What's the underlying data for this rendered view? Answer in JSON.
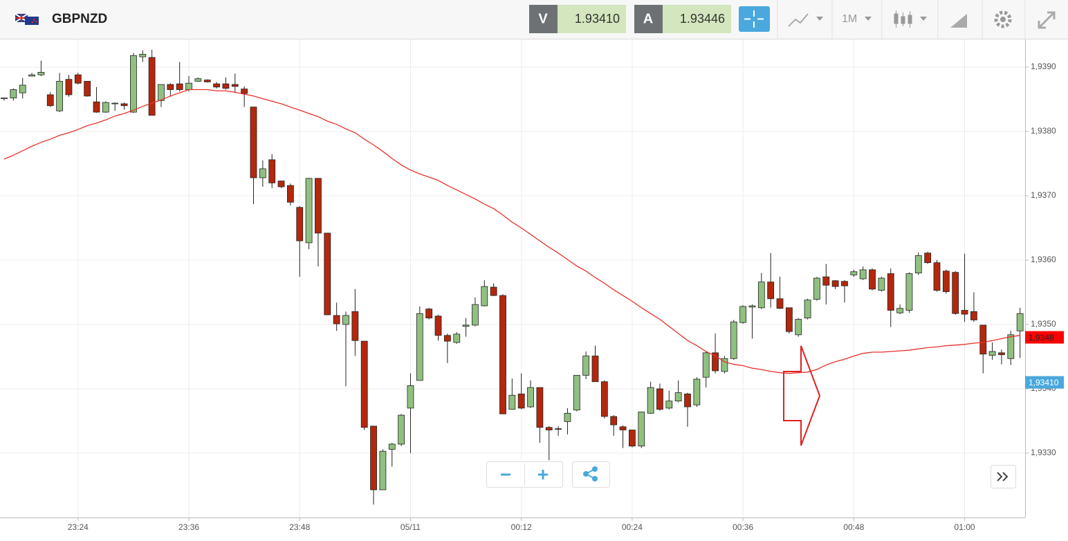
{
  "header": {
    "symbol": "GBPNZD",
    "sell_label": "V",
    "sell_price": "1.93410",
    "buy_label": "A",
    "buy_price": "1.93446",
    "timeframe": "1M"
  },
  "chart_data": {
    "type": "candlestick",
    "categories": [
      null,
      null,
      null,
      null,
      null,
      null,
      null,
      null,
      "23:24",
      null,
      null,
      null,
      null,
      null,
      null,
      null,
      null,
      null,
      null,
      null,
      "23:36",
      null,
      null,
      null,
      null,
      null,
      null,
      null,
      null,
      null,
      null,
      null,
      "23:48",
      null,
      null,
      null,
      null,
      null,
      null,
      null,
      null,
      null,
      null,
      null,
      "05/11",
      null,
      null,
      null,
      null,
      null,
      null,
      null,
      null,
      null,
      null,
      null,
      "00:12",
      null,
      null,
      null,
      null,
      null,
      null,
      null,
      null,
      null,
      null,
      null,
      "00:24",
      null,
      null,
      null,
      null,
      null,
      null,
      null,
      null,
      null,
      null,
      null,
      "00:36",
      null,
      null,
      null,
      null,
      null,
      null,
      null,
      null,
      null,
      null,
      null,
      "00:48",
      null,
      null,
      null,
      null,
      null,
      null,
      null,
      null,
      null,
      null,
      null,
      "01:00",
      null,
      null,
      null,
      null,
      null,
      null
    ],
    "open": [
      1.93851,
      1.93852,
      1.9386,
      1.93886,
      1.93888,
      1.93857,
      1.93832,
      1.93881,
      1.93888,
      1.93878,
      1.93846,
      1.9383,
      1.93843,
      1.93843,
      1.9383,
      1.93916,
      1.93915,
      1.93848,
      1.93873,
      1.93874,
      1.93865,
      1.93878,
      1.9388,
      1.93874,
      1.93874,
      1.93873,
      1.93866,
      1.93838,
      1.93728,
      1.93756,
      1.93723,
      1.93716,
      1.93682,
      1.93627,
      1.93727,
      1.93642,
      1.93514,
      1.935,
      1.9352,
      1.93474,
      1.93342,
      1.93243,
      1.93306,
      1.93314,
      1.9337,
      1.93413,
      1.93524,
      1.93513,
      1.93483,
      1.93472,
      1.93497,
      1.93499,
      1.93529,
      1.93558,
      1.93545,
      1.93368,
      1.93392,
      1.93372,
      1.93402,
      1.9334,
      1.93338,
      1.93349,
      1.93367,
      1.93421,
      1.93451,
      1.93411,
      1.93357,
      1.93341,
      1.93336,
      1.93311,
      1.93362,
      1.934,
      1.9337,
      1.93381,
      1.93392,
      1.93375,
      1.93418,
      1.93456,
      1.93427,
      1.93447,
      1.93503,
      1.93527,
      1.93526,
      1.93566,
      1.9354,
      1.93526,
      1.93484,
      1.9351,
      1.93539,
      1.93574,
      1.93568,
      1.93567,
      1.93577,
      1.93571,
      1.93585,
      1.93553,
      1.93579,
      1.93518,
      1.93522,
      1.9358,
      1.93611,
      1.93596,
      1.93583,
      1.93581,
      1.93522,
      1.9352,
      1.93499,
      1.93452,
      1.93456,
      1.93447,
      1.9349
    ],
    "high": [
      1.93852,
      1.93867,
      1.93883,
      1.93891,
      1.9391,
      1.93861,
      1.93891,
      1.93888,
      1.93891,
      1.93878,
      1.93869,
      1.93847,
      1.93845,
      1.93845,
      1.93922,
      1.93926,
      1.93927,
      1.93873,
      1.93875,
      1.93908,
      1.93886,
      1.93884,
      1.93881,
      1.93877,
      1.93884,
      1.9389,
      1.9387,
      1.93838,
      1.93755,
      1.93765,
      1.93723,
      1.93719,
      1.93684,
      1.93728,
      1.93728,
      1.93642,
      1.93534,
      1.9352,
      1.93555,
      1.93474,
      1.93342,
      1.93306,
      1.93316,
      1.93361,
      1.93424,
      1.93528,
      1.93526,
      1.93515,
      1.93486,
      1.93488,
      1.9351,
      1.93542,
      1.93569,
      1.93564,
      1.93547,
      1.93416,
      1.93424,
      1.93413,
      1.93402,
      1.93342,
      1.93342,
      1.9337,
      1.93421,
      1.93458,
      1.93467,
      1.93413,
      1.93359,
      1.93343,
      1.93336,
      1.93364,
      1.93411,
      1.93408,
      1.93397,
      1.93413,
      1.93394,
      1.93418,
      1.93458,
      1.93486,
      1.93451,
      1.93507,
      1.9353,
      1.93531,
      1.9358,
      1.93611,
      1.93574,
      1.93526,
      1.9351,
      1.9354,
      1.93574,
      1.93594,
      1.93569,
      1.93569,
      1.93585,
      1.9359,
      1.93587,
      1.93574,
      1.93587,
      1.93531,
      1.93581,
      1.93612,
      1.93613,
      1.936,
      1.93585,
      1.93583,
      1.9361,
      1.9355,
      1.93499,
      1.93472,
      1.93461,
      1.9349,
      1.93526
    ],
    "low": [
      1.93848,
      1.93848,
      1.93851,
      1.93886,
      1.93886,
      1.93838,
      1.9383,
      1.93854,
      1.93873,
      1.93854,
      1.93829,
      1.93829,
      1.93832,
      1.93834,
      1.93829,
      1.93908,
      1.93825,
      1.93838,
      1.93854,
      1.93862,
      1.93862,
      1.93877,
      1.93876,
      1.93867,
      1.93865,
      1.9386,
      1.93838,
      1.93687,
      1.93714,
      1.93712,
      1.93712,
      1.93685,
      1.93574,
      1.93617,
      1.9359,
      1.93515,
      1.9349,
      1.93404,
      1.93451,
      1.93336,
      1.9322,
      1.93243,
      1.93279,
      1.93311,
      1.933,
      1.93413,
      1.93508,
      1.93475,
      1.9344,
      1.9347,
      1.93481,
      1.93497,
      1.93528,
      1.93544,
      1.93361,
      1.93368,
      1.93368,
      1.9337,
      1.93316,
      1.93289,
      1.93327,
      1.93329,
      1.93365,
      1.93415,
      1.93411,
      1.93354,
      1.93327,
      1.93308,
      1.93309,
      1.93308,
      1.93361,
      1.93366,
      1.93368,
      1.93379,
      1.93341,
      1.93372,
      1.93402,
      1.93424,
      1.93424,
      1.93445,
      1.93501,
      1.93478,
      1.93524,
      1.93526,
      1.93524,
      1.93486,
      1.93481,
      1.93508,
      1.93537,
      1.93531,
      1.93555,
      1.93534,
      1.93574,
      1.93569,
      1.93553,
      1.93551,
      1.93496,
      1.93516,
      1.93518,
      1.93577,
      1.93594,
      1.93551,
      1.93548,
      1.93515,
      1.93504,
      1.93504,
      1.93424,
      1.93445,
      1.93438,
      1.93437,
      1.93448
    ],
    "close": [
      1.93852,
      1.93865,
      1.93872,
      1.93888,
      1.93892,
      1.9384,
      1.93878,
      1.93857,
      1.93875,
      1.93855,
      1.9383,
      1.93845,
      1.93844,
      1.9384,
      1.93918,
      1.9392,
      1.93825,
      1.93873,
      1.93865,
      1.93865,
      1.93875,
      1.93882,
      1.93877,
      1.93869,
      1.93867,
      1.9387,
      1.93859,
      1.93728,
      1.93742,
      1.9372,
      1.93714,
      1.9369,
      1.9363,
      1.93727,
      1.93642,
      1.93515,
      1.93501,
      1.93514,
      1.93475,
      1.9334,
      1.93243,
      1.93303,
      1.93314,
      1.93359,
      1.93405,
      1.93517,
      1.9351,
      1.93483,
      1.93474,
      1.93485,
      1.93499,
      1.93531,
      1.93559,
      1.93545,
      1.93361,
      1.9339,
      1.9337,
      1.93402,
      1.9334,
      1.93336,
      1.93337,
      1.93362,
      1.93421,
      1.93451,
      1.93411,
      1.93357,
      1.93344,
      1.93336,
      1.93311,
      1.93364,
      1.93402,
      1.93368,
      1.93381,
      1.93394,
      1.93372,
      1.93415,
      1.93456,
      1.93428,
      1.93447,
      1.93504,
      1.93528,
      1.93529,
      1.93566,
      1.9354,
      1.93525,
      1.93489,
      1.93508,
      1.93538,
      1.93572,
      1.93561,
      1.93559,
      1.9356,
      1.93582,
      1.93585,
      1.93555,
      1.93572,
      1.93522,
      1.93525,
      1.93579,
      1.93607,
      1.93596,
      1.93553,
      1.93551,
      1.93517,
      1.93516,
      1.93507,
      1.93454,
      1.93458,
      1.93453,
      1.93484,
      1.93517
    ],
    "up_color": "#90c07f",
    "down_color": "#b3280d",
    "moving_average": {
      "color": "#e8302a",
      "values": [
        1.93757,
        1.93763,
        1.9377,
        1.93777,
        1.93783,
        1.93788,
        1.93794,
        1.93798,
        1.93803,
        1.93809,
        1.93813,
        1.93818,
        1.93824,
        1.93828,
        1.93833,
        1.93839,
        1.93844,
        1.93849,
        1.93855,
        1.9386,
        1.93865,
        1.93865,
        1.93865,
        1.93863,
        1.93863,
        1.93861,
        1.93858,
        1.93855,
        1.93851,
        1.93847,
        1.93843,
        1.93838,
        1.93833,
        1.93828,
        1.93823,
        1.93816,
        1.93811,
        1.93804,
        1.93798,
        1.93788,
        1.93779,
        1.93769,
        1.93758,
        1.93748,
        1.9374,
        1.93734,
        1.93729,
        1.93724,
        1.93716,
        1.93709,
        1.93702,
        1.93695,
        1.93687,
        1.9368,
        1.9367,
        1.93659,
        1.9365,
        1.9364,
        1.9363,
        1.9362,
        1.93611,
        1.93601,
        1.93591,
        1.93583,
        1.93573,
        1.93564,
        1.93554,
        1.93545,
        1.93536,
        1.93526,
        1.93517,
        1.93508,
        1.93497,
        1.93486,
        1.93475,
        1.93467,
        1.93458,
        1.93451,
        1.93442,
        1.93438,
        1.93436,
        1.93432,
        1.9343,
        1.93427,
        1.93425,
        1.93424,
        1.93425,
        1.93426,
        1.9343,
        1.93437,
        1.93442,
        1.93446,
        1.93451,
        1.93455,
        1.93457,
        1.93457,
        1.93458,
        1.93459,
        1.9346,
        1.93462,
        1.93464,
        1.93465,
        1.93467,
        1.93468,
        1.93469,
        1.93471,
        1.93472,
        1.93475,
        1.93478,
        1.93481,
        1.93483
      ]
    },
    "ylim": [
      1.932,
      1.93943
    ],
    "yticks": [
      {
        "value": 1.933,
        "label": "1,9330"
      },
      {
        "value": 1.934,
        "label": "1,9340"
      },
      {
        "value": 1.935,
        "label": "1,9350"
      },
      {
        "value": 1.936,
        "label": "1,9360"
      },
      {
        "value": 1.937,
        "label": "1,9370"
      },
      {
        "value": 1.938,
        "label": "1,9380"
      },
      {
        "value": 1.939,
        "label": "1,9390"
      }
    ],
    "grid": true,
    "price_markers": [
      {
        "value": 1.9348,
        "label": "1,9348",
        "color": "#ff0000"
      },
      {
        "value": 1.9341,
        "label": "1,93410",
        "color": "#4aa8dc"
      }
    ]
  }
}
